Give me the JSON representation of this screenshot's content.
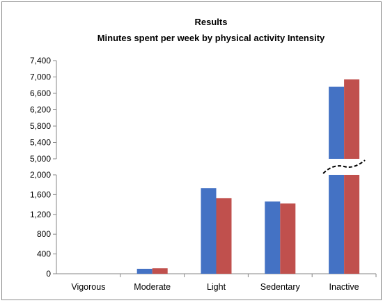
{
  "chart_data": {
    "type": "bar",
    "title": "Results",
    "subtitle": "Minutes spent per week by physical activity Intensity",
    "categories": [
      "Vigorous",
      "Moderate",
      "Light",
      "Sedentary",
      "Inactive"
    ],
    "series": [
      {
        "color": "#4472C4",
        "values": [
          0,
          100,
          1730,
          1460,
          6760
        ]
      },
      {
        "color": "#C0504D",
        "values": [
          0,
          110,
          1530,
          1420,
          6940
        ]
      }
    ],
    "axis_break": {
      "lower": [
        0,
        2000
      ],
      "upper": [
        5000,
        7400
      ]
    },
    "lower_ticks": [
      "0",
      "400",
      "800",
      "1,200",
      "1,600",
      "2,000"
    ],
    "upper_ticks": [
      "5,000",
      "5,400",
      "5,800",
      "6,200",
      "6,600",
      "7,000",
      "7,400"
    ],
    "grid": false,
    "legend": "none"
  }
}
